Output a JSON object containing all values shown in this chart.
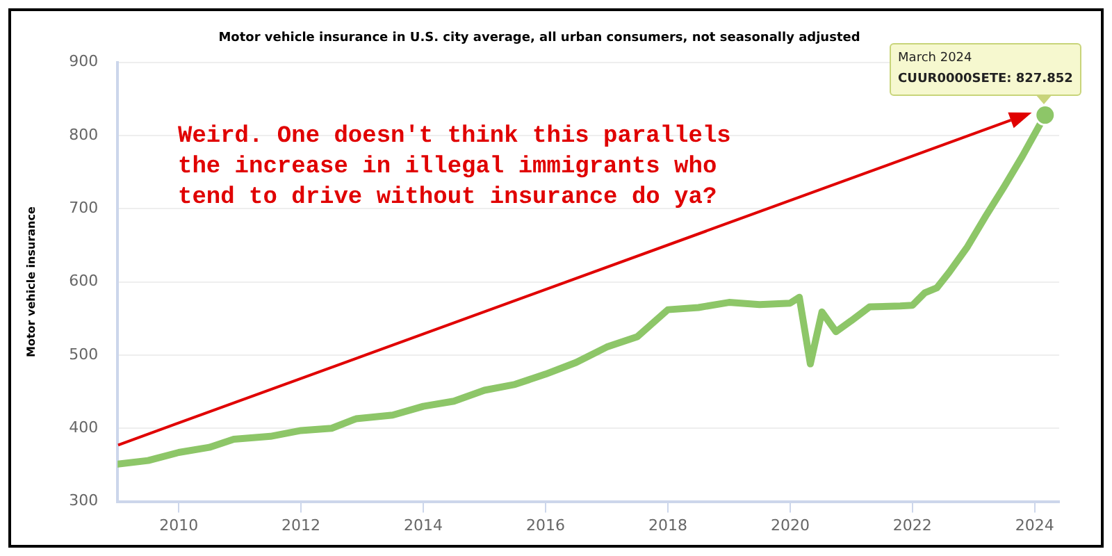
{
  "chart_data": {
    "type": "line",
    "title": "Motor vehicle insurance in U.S. city average, all urban consumers, not seasonally adjusted",
    "ylabel": "Motor vehicle insurance",
    "x": [
      2009.0,
      2009.5,
      2010.0,
      2010.5,
      2010.9,
      2011.5,
      2012.0,
      2012.5,
      2012.9,
      2013.5,
      2014.0,
      2014.5,
      2015.0,
      2015.5,
      2016.0,
      2016.5,
      2017.0,
      2017.5,
      2018.0,
      2018.5,
      2019.0,
      2019.5,
      2020.0,
      2020.15,
      2020.33,
      2020.52,
      2020.75,
      2021.0,
      2021.3,
      2021.8,
      2022.0,
      2022.2,
      2022.4,
      2022.6,
      2022.9,
      2023.2,
      2023.5,
      2023.8,
      2024.17
    ],
    "series": [
      {
        "color": "#8dc668",
        "values": [
          351,
          356,
          367,
          374,
          385,
          389,
          397,
          400,
          413,
          418,
          430,
          437,
          452,
          460,
          474,
          490,
          511,
          525,
          562,
          565,
          572,
          569,
          571,
          579,
          488,
          559,
          532,
          547,
          566,
          567,
          568,
          585,
          592,
          613,
          648,
          690,
          730,
          772,
          827.852
        ]
      }
    ],
    "xlim": [
      2009,
      2024.4
    ],
    "xticks": [
      2010,
      2012,
      2014,
      2016,
      2018,
      2020,
      2022,
      2024
    ],
    "ylim": [
      300,
      900
    ],
    "yticks": [
      300,
      400,
      500,
      600,
      700,
      800,
      900
    ],
    "grid": "y",
    "marker": "none",
    "line_style": "solid",
    "annotations": [
      "Weird. One doesn't think this parallels the increase in illegal immigrants who tend to drive without insurance do ya?",
      {
        "text": "March 2024\nCUUR0000SETE: 827.852",
        "x": 2024.17,
        "y": 827.852
      }
    ]
  }
}
